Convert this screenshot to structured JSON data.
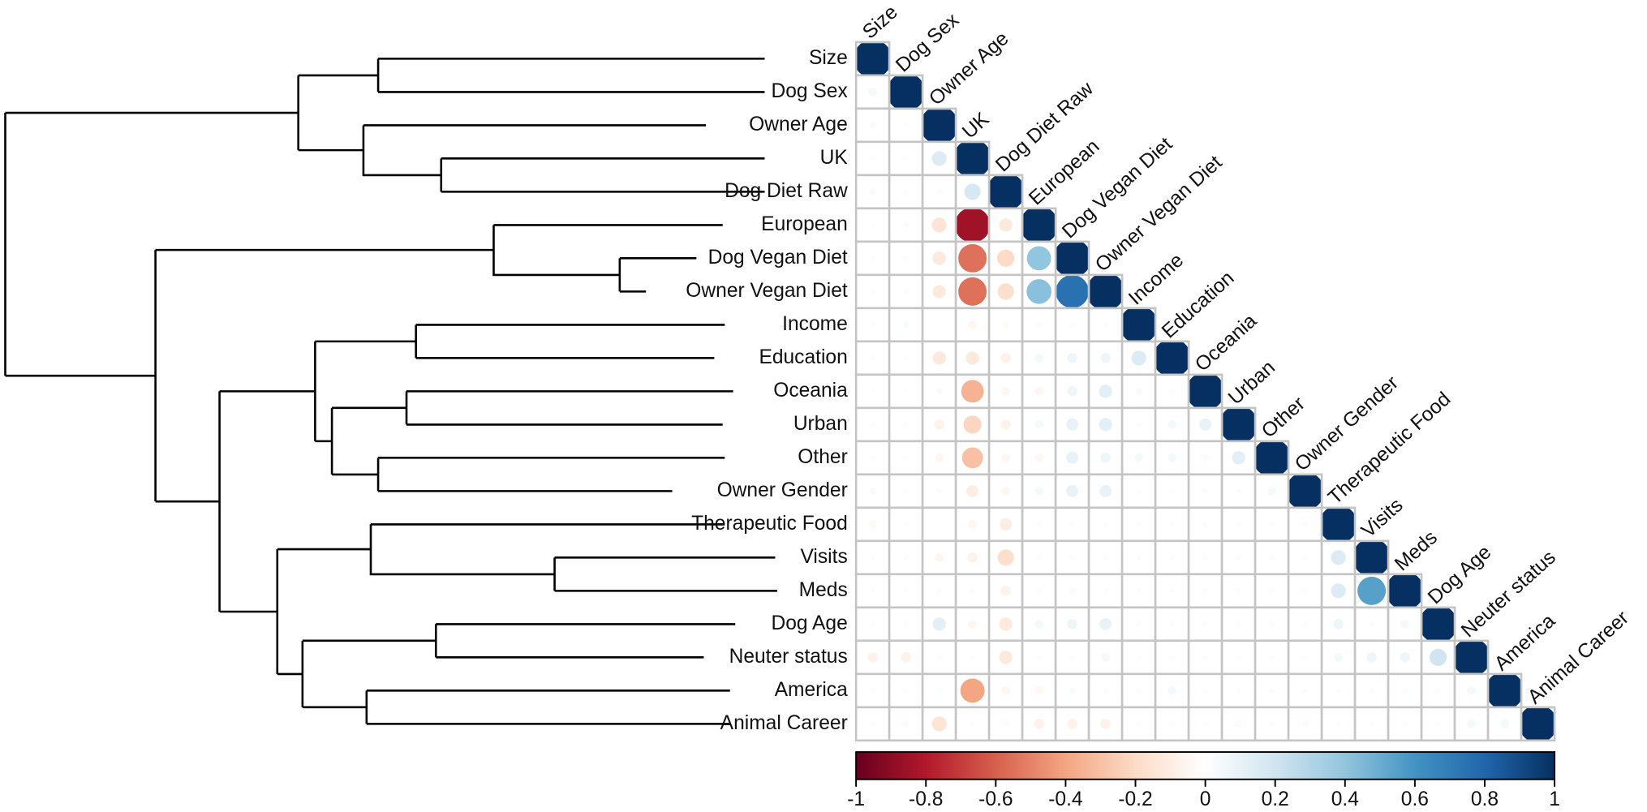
{
  "chart_data": {
    "type": "corrplot",
    "labels": [
      "Size",
      "Dog Sex",
      "Owner Age",
      "UK",
      "Dog Diet Raw",
      "European",
      "Dog Vegan Diet",
      "Owner Vegan Diet",
      "Income",
      "Education",
      "Oceania",
      "Urban",
      "Other",
      "Owner Gender",
      "Therapeutic Food",
      "Visits",
      "Meds",
      "Dog Age",
      "Neuter status",
      "America",
      "Animal Career"
    ],
    "matrix": [
      [
        1
      ],
      [
        0.05,
        1
      ],
      [
        0.03,
        0.02,
        1
      ],
      [
        0.02,
        0.02,
        0.15,
        1
      ],
      [
        0.03,
        0.02,
        0.02,
        0.18,
        1
      ],
      [
        0.02,
        -0.03,
        -0.15,
        -0.85,
        -0.12,
        1
      ],
      [
        0.02,
        -0.02,
        -0.12,
        -0.55,
        -0.2,
        0.4,
        1
      ],
      [
        0.02,
        -0.02,
        -0.12,
        -0.55,
        -0.18,
        0.42,
        0.75,
        1
      ],
      [
        0.02,
        0.03,
        0.01,
        -0.05,
        -0.03,
        0.02,
        0.02,
        0.02,
        1
      ],
      [
        0.02,
        0.02,
        -0.12,
        -0.12,
        -0.07,
        0.05,
        0.07,
        0.07,
        0.15,
        1
      ],
      [
        0.02,
        0.02,
        0.03,
        -0.35,
        -0.05,
        -0.05,
        0.07,
        0.12,
        0.03,
        0.02,
        1
      ],
      [
        0.02,
        0.02,
        -0.07,
        -0.22,
        -0.07,
        0.05,
        0.1,
        0.12,
        0.02,
        0.05,
        0.1,
        1
      ],
      [
        0.02,
        0.02,
        -0.05,
        -0.3,
        -0.05,
        -0.05,
        0.1,
        0.07,
        0.05,
        0.05,
        -0.03,
        0.12,
        1
      ],
      [
        0.03,
        0.02,
        0.02,
        -0.1,
        -0.05,
        0.05,
        0.1,
        0.1,
        0.02,
        0.02,
        0.02,
        0.02,
        0.05,
        1
      ],
      [
        -0.04,
        0.02,
        0.01,
        -0.05,
        -0.1,
        0.02,
        0.02,
        0.02,
        0.02,
        0.02,
        0.02,
        0.02,
        0.02,
        0.02,
        1
      ],
      [
        0.02,
        0.02,
        -0.05,
        -0.07,
        -0.18,
        0.02,
        0.02,
        0.02,
        0.02,
        0.02,
        0.02,
        0.02,
        0.02,
        0.02,
        0.15,
        1
      ],
      [
        0.02,
        0.02,
        0.02,
        0.02,
        -0.07,
        0.02,
        -0.03,
        0.02,
        0.02,
        0.02,
        0.02,
        0.02,
        0.02,
        -0.02,
        0.15,
        0.55,
        1
      ],
      [
        0.02,
        0.02,
        0.12,
        -0.05,
        -0.12,
        0.05,
        0.07,
        0.1,
        0.02,
        0.02,
        0.02,
        0.02,
        0.02,
        0.02,
        0.07,
        0.02,
        0.05,
        1
      ],
      [
        -0.07,
        -0.07,
        0.02,
        0.02,
        -0.12,
        0.02,
        0.02,
        0.05,
        0.02,
        0.02,
        0.02,
        0.02,
        0.02,
        0.02,
        0.05,
        0.07,
        0.07,
        0.2,
        1
      ],
      [
        0.02,
        0.02,
        0.02,
        -0.4,
        -0.05,
        -0.05,
        0.03,
        0.02,
        0.02,
        0.05,
        0.02,
        0.02,
        0.02,
        0.02,
        0.02,
        0.02,
        0.02,
        0.02,
        0.05,
        1
      ],
      [
        0.02,
        -0.03,
        -0.15,
        0.02,
        -0.03,
        -0.07,
        -0.07,
        -0.07,
        0.02,
        0.02,
        0.02,
        -0.03,
        0.02,
        -0.03,
        0.02,
        0.02,
        0.02,
        0.02,
        0.05,
        0.05,
        1
      ]
    ],
    "clim": [
      -1,
      1
    ],
    "colorbar_ticks": [
      -1,
      -0.8,
      -0.6,
      -0.4,
      -0.2,
      0,
      0.2,
      0.4,
      0.6,
      0.8,
      1
    ],
    "colorscale": [
      "#67001f",
      "#b2182b",
      "#d6604d",
      "#f4a582",
      "#fddbc7",
      "#ffffff",
      "#d1e5f0",
      "#92c5de",
      "#4393c3",
      "#2166ac",
      "#053061"
    ]
  }
}
